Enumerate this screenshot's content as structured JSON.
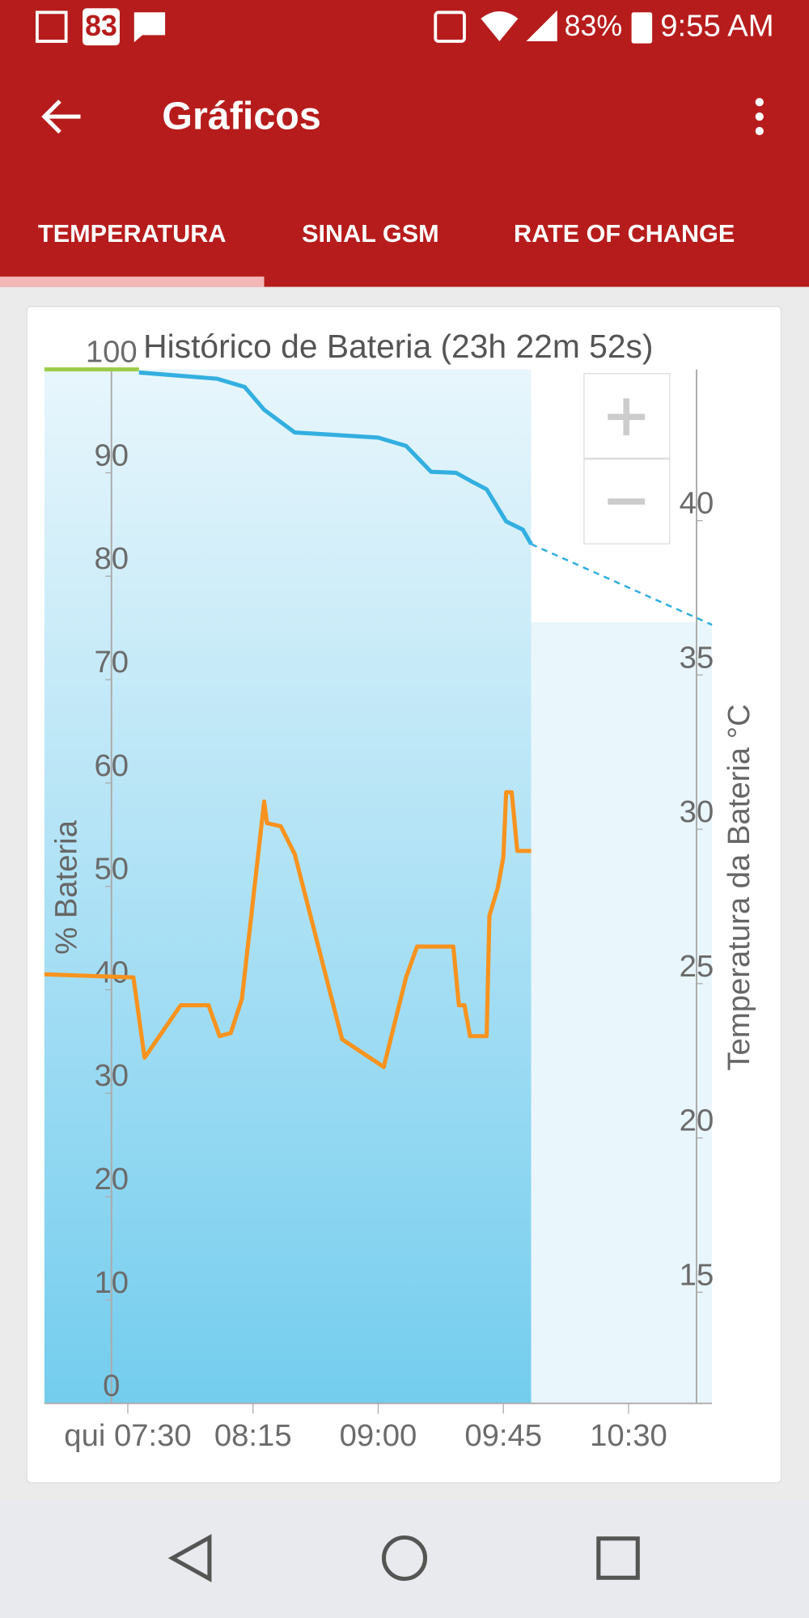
{
  "status_bar": {
    "notification_count": "83",
    "battery": "83%",
    "time": "9:55 AM"
  },
  "app_bar": {
    "title": "Gráficos"
  },
  "tabs": [
    "TEMPERATURA",
    "SINAL GSM",
    "RATE OF CHANGE"
  ],
  "chart_data": {
    "type": "line",
    "title": "Histórico de Bateria (23h 22m 52s)",
    "y_label": "% Bateria",
    "y2_label": "Temperatura da Bateria °C",
    "xlim": [
      "07:00",
      "11:00"
    ],
    "xticks": [
      {
        "value": "07:30",
        "label": "qui 07:30"
      },
      "08:15",
      "09:00",
      "09:45",
      "10:30"
    ],
    "ylim": [
      0,
      100
    ],
    "yticks": [
      0,
      10,
      20,
      30,
      40,
      50,
      60,
      70,
      80,
      90,
      100
    ],
    "y2lim": [
      11.4,
      44.9
    ],
    "y2ticks": [
      15,
      20,
      25,
      30,
      35,
      40
    ],
    "series": [
      {
        "x": [
          "07:00",
          "07:34"
        ],
        "values": [
          100,
          100
        ],
        "color": "#9ccc4a"
      },
      {
        "x": [
          "07:34",
          "08:02",
          "08:12",
          "08:19",
          "08:30",
          "09:00",
          "09:10",
          "09:19",
          "09:28",
          "09:34",
          "09:39",
          "09:46",
          "09:52",
          "09:55"
        ],
        "values": [
          99.7,
          99.1,
          98.3,
          96.1,
          93.9,
          93.4,
          92.6,
          90.1,
          90.0,
          89.1,
          88.4,
          85.3,
          84.5,
          83.1
        ],
        "color": "#33afe0"
      },
      {
        "x": [
          "09:55",
          "11:00"
        ],
        "values": [
          83.1,
          75.3
        ],
        "color": "#33afe0",
        "dashed": true
      },
      {
        "x": [
          "07:00",
          "07:32",
          "07:36",
          "07:49",
          "07:59",
          "08:03",
          "08:07",
          "08:11",
          "08:19",
          "08:20",
          "08:25",
          "08:30",
          "08:47",
          "09:02",
          "09:10",
          "09:14",
          "09:27",
          "09:29",
          "09:31",
          "09:33",
          "09:39",
          "09:40",
          "09:43",
          "09:45",
          "09:46",
          "09:48",
          "09:50",
          "09:55"
        ],
        "values": [
          25.3,
          25.2,
          22.6,
          24.3,
          24.3,
          23.3,
          23.4,
          24.5,
          30.9,
          30.2,
          30.1,
          29.2,
          23.2,
          22.3,
          25.2,
          26.2,
          26.2,
          24.3,
          24.3,
          23.3,
          23.3,
          27.2,
          28.1,
          29.1,
          31.2,
          31.2,
          29.3,
          29.3
        ],
        "color": "#f7931e",
        "axis": "y2"
      }
    ]
  }
}
